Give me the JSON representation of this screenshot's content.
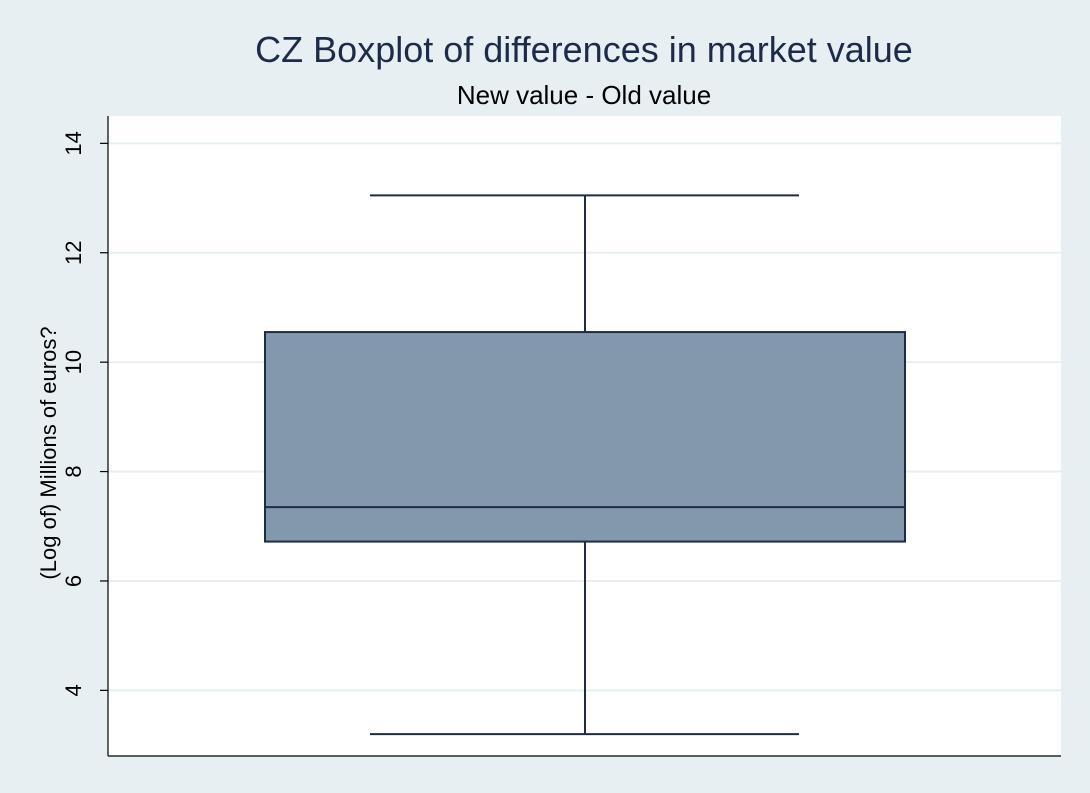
{
  "chart_data": {
    "type": "boxplot",
    "title": "CZ Boxplot of differences in market value",
    "subtitle": "New value - Old value",
    "ylabel": "(Log of) Millions of euros?",
    "xlabel": "",
    "ylim": [
      2.8,
      14.5
    ],
    "yticks": [
      4,
      6,
      8,
      10,
      12,
      14
    ],
    "grid": true,
    "box": {
      "whisker_low": 3.2,
      "q1": 6.72,
      "median": 7.35,
      "q3": 10.55,
      "whisker_high": 13.05
    }
  },
  "colors": {
    "background": "#e8eff2",
    "plot_background": "#ffffff",
    "box_fill": "#8498ad",
    "box_stroke": "#1c2b4a",
    "grid": "#e8eff2",
    "title": "#1c2b4a"
  }
}
